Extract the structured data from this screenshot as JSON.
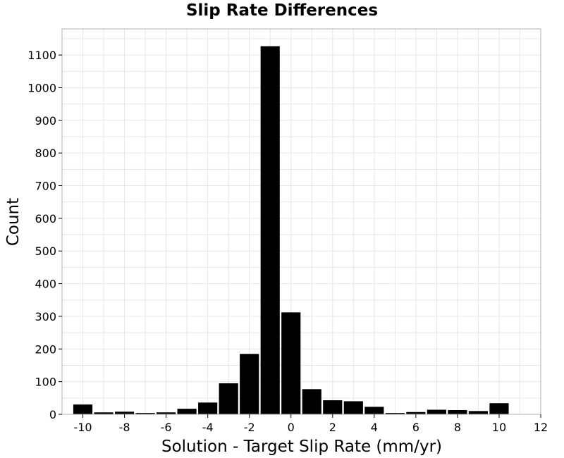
{
  "chart_data": {
    "type": "bar",
    "title": "Slip Rate Differences",
    "xlabel": "Solution - Target Slip Rate (mm/yr)",
    "ylabel": "Count",
    "xlim": [
      -11,
      12
    ],
    "ylim": [
      0,
      1180
    ],
    "grid": true,
    "legend": "none",
    "bar_color": "#000000",
    "bin_width": 1,
    "bins": [
      {
        "x": -10,
        "value": 30
      },
      {
        "x": -9,
        "value": 6
      },
      {
        "x": -8,
        "value": 8
      },
      {
        "x": -7,
        "value": 4
      },
      {
        "x": -6,
        "value": 6
      },
      {
        "x": -5,
        "value": 17
      },
      {
        "x": -4,
        "value": 36
      },
      {
        "x": -3,
        "value": 95
      },
      {
        "x": -2,
        "value": 185
      },
      {
        "x": -1,
        "value": 1127
      },
      {
        "x": 0,
        "value": 312
      },
      {
        "x": 1,
        "value": 77
      },
      {
        "x": 2,
        "value": 43
      },
      {
        "x": 3,
        "value": 40
      },
      {
        "x": 4,
        "value": 23
      },
      {
        "x": 5,
        "value": 4
      },
      {
        "x": 6,
        "value": 7
      },
      {
        "x": 7,
        "value": 14
      },
      {
        "x": 8,
        "value": 13
      },
      {
        "x": 9,
        "value": 10
      },
      {
        "x": 10,
        "value": 34
      }
    ],
    "x_ticks": [
      -10,
      -8,
      -6,
      -4,
      -2,
      0,
      2,
      4,
      6,
      8,
      10,
      12
    ],
    "y_ticks": [
      0,
      100,
      200,
      300,
      400,
      500,
      600,
      700,
      800,
      900,
      1000,
      1100
    ]
  }
}
